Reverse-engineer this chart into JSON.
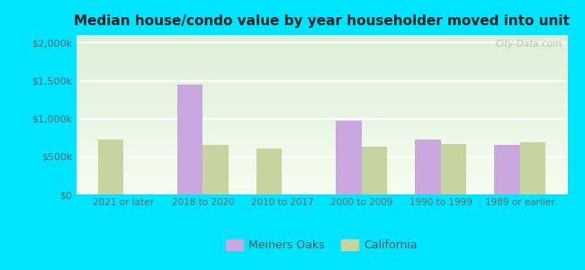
{
  "title": "Median house/condo value by year householder moved into unit",
  "categories": [
    "2021 or later",
    "2018 to 2020",
    "2010 to 2017",
    "2000 to 2009",
    "1990 to 1999",
    "1989 or earlier"
  ],
  "meiners_oaks": [
    null,
    1450000,
    null,
    975000,
    725000,
    650000
  ],
  "california": [
    725000,
    650000,
    610000,
    630000,
    660000,
    690000
  ],
  "bar_color_meiners": "#c9a8e0",
  "bar_color_california": "#c8d4a0",
  "background_color": "#00e5ff",
  "legend_meiners": "Meiners Oaks",
  "legend_california": "California",
  "ylabel_ticks": [
    0,
    500000,
    1000000,
    1500000,
    2000000
  ],
  "ylabel_labels": [
    "$0",
    "$500k",
    "$1,000k",
    "$1,500k",
    "$2,000k"
  ],
  "watermark": "City-Data.com",
  "bar_width": 0.32,
  "ylim": [
    0,
    2100000
  ]
}
